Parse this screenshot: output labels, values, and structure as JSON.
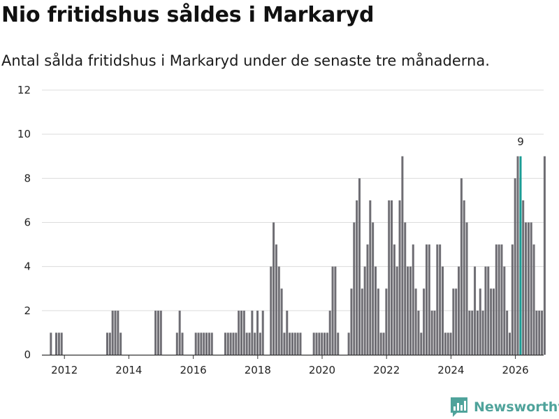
{
  "title": "Nio fritidshus såldes i Markaryd",
  "subtitle": "Antal sålda fritidshus i Markaryd under de senaste tre månaderna.",
  "brand": {
    "name": "Newsworthy"
  },
  "colors": {
    "bar": "#6e6d73",
    "highlight": "#1a9c94",
    "grid": "#dcdcdc",
    "axis": "#333333",
    "brand": "#4fa39b"
  },
  "chart_data": {
    "type": "bar",
    "title": "Nio fritidshus såldes i Markaryd",
    "xlabel": "",
    "ylabel": "",
    "ylim": [
      0,
      12
    ],
    "yticks": [
      0,
      2,
      4,
      6,
      8,
      10,
      12
    ],
    "xticks": [
      2012,
      2014,
      2016,
      2018,
      2020,
      2022,
      2024,
      2026
    ],
    "x_tick_labels": [
      "2012",
      "2014",
      "2016",
      "2018",
      "2020",
      "2022",
      "2024",
      "2026"
    ],
    "y_tick_labels": [
      "0",
      "2",
      "4",
      "6",
      "8",
      "10",
      "12"
    ],
    "x_start_decimal_year": 2011.58,
    "step_years": 0.0833,
    "values": [
      1,
      0,
      1,
      1,
      1,
      0,
      0,
      0,
      0,
      0,
      0,
      0,
      0,
      0,
      0,
      0,
      0,
      0,
      0,
      0,
      0,
      1,
      1,
      2,
      2,
      2,
      1,
      0,
      0,
      0,
      0,
      0,
      0,
      0,
      0,
      0,
      0,
      0,
      0,
      2,
      2,
      2,
      0,
      0,
      0,
      0,
      0,
      1,
      2,
      1,
      0,
      0,
      0,
      0,
      1,
      1,
      1,
      1,
      1,
      1,
      1,
      0,
      0,
      0,
      0,
      1,
      1,
      1,
      1,
      1,
      2,
      2,
      2,
      1,
      1,
      2,
      1,
      2,
      1,
      2,
      0,
      0,
      4,
      6,
      5,
      4,
      3,
      1,
      2,
      1,
      1,
      1,
      1,
      1,
      0,
      0,
      0,
      0,
      1,
      1,
      1,
      1,
      1,
      1,
      2,
      4,
      4,
      1,
      0,
      0,
      0,
      1,
      3,
      6,
      7,
      8,
      3,
      4,
      5,
      7,
      6,
      4,
      3,
      1,
      1,
      3,
      7,
      7,
      5,
      4,
      7,
      9,
      6,
      4,
      4,
      5,
      3,
      2,
      1,
      3,
      5,
      5,
      2,
      2,
      5,
      5,
      4,
      1,
      1,
      1,
      3,
      3,
      4,
      8,
      7,
      6,
      2,
      2,
      4,
      2,
      3,
      2,
      4,
      4,
      3,
      3,
      5,
      5,
      5,
      4,
      2,
      1,
      5,
      8,
      9,
      8,
      7,
      6,
      6,
      6,
      5,
      2,
      2,
      2,
      9
    ],
    "highlight": {
      "value": 9,
      "label": "9",
      "decimal_year": 2026.16
    }
  }
}
